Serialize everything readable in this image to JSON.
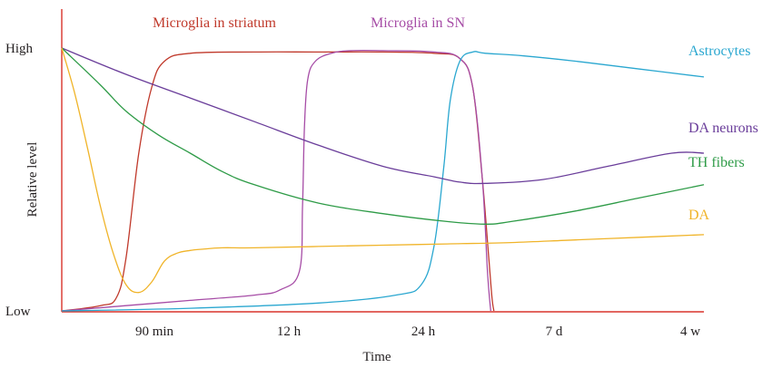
{
  "chart_data": {
    "type": "line",
    "title": "",
    "xlabel": "Time",
    "ylabel": "Relative level",
    "x_ticks": [
      "90 min",
      "12 h",
      "24 h",
      "7 d",
      "4 w"
    ],
    "y_ticks": [
      "Low",
      "High"
    ],
    "xlim": [
      0,
      100
    ],
    "ylim": [
      0,
      1
    ],
    "axis_color": "#d9342b",
    "grid": false,
    "series": [
      {
        "name": "Microglia in striatum",
        "color": "#c0392b",
        "x": [
          0,
          6,
          8.5,
          10,
          12,
          14,
          16,
          20,
          30,
          40,
          50,
          58,
          62,
          64,
          65.5,
          66.5,
          67,
          67.3
        ],
        "y": [
          0,
          0.02,
          0.05,
          0.2,
          0.6,
          0.85,
          0.95,
          0.98,
          0.985,
          0.985,
          0.985,
          0.98,
          0.96,
          0.85,
          0.5,
          0.2,
          0.05,
          0
        ]
      },
      {
        "name": "Microglia in SN",
        "color": "#a64ca6",
        "x": [
          0,
          10,
          20,
          30,
          34,
          37,
          37.5,
          37.8,
          38.3,
          39.5,
          42,
          45,
          50,
          58,
          62,
          64,
          65.5,
          66.3,
          66.8
        ],
        "y": [
          0,
          0.02,
          0.04,
          0.06,
          0.08,
          0.15,
          0.4,
          0.7,
          0.88,
          0.95,
          0.98,
          0.99,
          0.99,
          0.985,
          0.96,
          0.85,
          0.5,
          0.15,
          0
        ]
      },
      {
        "name": "Astrocytes",
        "color": "#2aa7d0",
        "x": [
          0,
          20,
          40,
          52,
          56,
          58,
          59.5,
          60.5,
          62,
          64,
          66,
          72,
          80,
          90,
          100
        ],
        "y": [
          0,
          0.01,
          0.03,
          0.06,
          0.1,
          0.25,
          0.55,
          0.8,
          0.95,
          0.985,
          0.98,
          0.97,
          0.95,
          0.92,
          0.89
        ]
      },
      {
        "name": "DA neurons",
        "color": "#6a3d9a",
        "x": [
          0,
          10,
          20,
          30,
          40,
          50,
          58,
          62,
          66,
          75,
          85,
          95,
          100
        ],
        "y": [
          1,
          0.9,
          0.81,
          0.72,
          0.63,
          0.55,
          0.51,
          0.49,
          0.485,
          0.5,
          0.55,
          0.6,
          0.6
        ]
      },
      {
        "name": "TH fibers",
        "color": "#2e9b47",
        "x": [
          0,
          6,
          10,
          15,
          20,
          25,
          30,
          40,
          50,
          60,
          66,
          70,
          80,
          90,
          100
        ],
        "y": [
          1,
          0.86,
          0.76,
          0.67,
          0.6,
          0.53,
          0.48,
          0.41,
          0.37,
          0.34,
          0.33,
          0.34,
          0.38,
          0.43,
          0.48
        ]
      },
      {
        "name": "DA",
        "color": "#f0b429",
        "x": [
          0,
          2,
          4,
          6,
          8,
          10,
          12,
          14,
          16,
          18,
          20,
          22,
          25,
          30,
          40,
          50,
          60,
          70,
          80,
          90,
          100
        ],
        "y": [
          1,
          0.83,
          0.62,
          0.4,
          0.22,
          0.1,
          0.07,
          0.11,
          0.19,
          0.22,
          0.23,
          0.235,
          0.24,
          0.24,
          0.245,
          0.25,
          0.255,
          0.26,
          0.27,
          0.28,
          0.29
        ]
      }
    ]
  }
}
